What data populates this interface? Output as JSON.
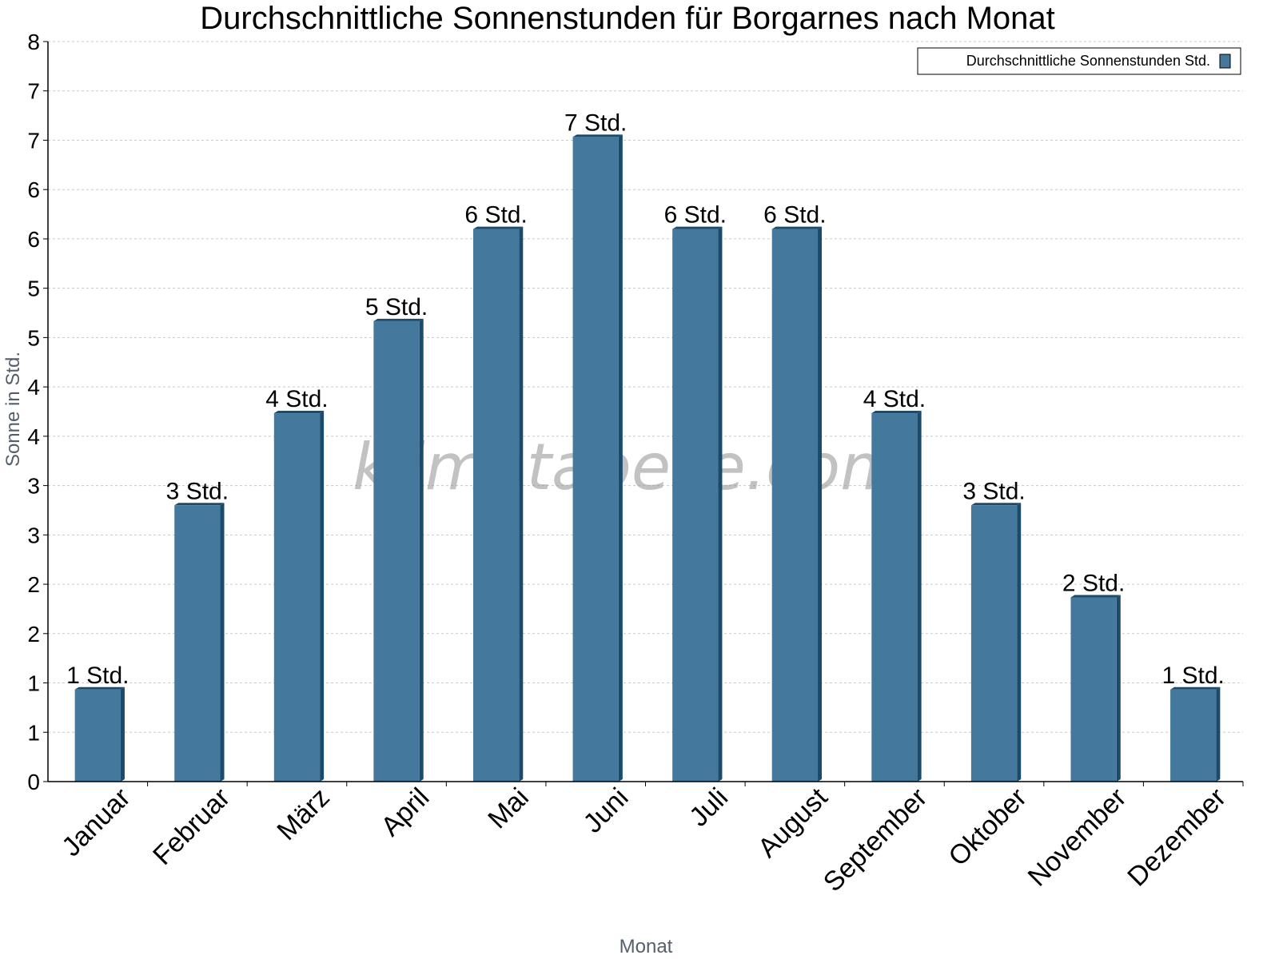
{
  "colors": {
    "bar_front": "#44799d",
    "bar_side": "#1b4a6b",
    "bar_top": "#1b4a6b",
    "grid": "#c8c8c8",
    "axis": "#000000"
  },
  "watermark": "klimatabelle.com",
  "chart_data": {
    "type": "bar",
    "title": "Durchschnittliche Sonnenstunden für Borgarnes nach Monat",
    "xlabel": "Monat",
    "ylabel": "Sonne in Std.",
    "ylim": [
      0,
      7.5
    ],
    "y_tick_labels": [
      "0",
      "1",
      "1",
      "2",
      "2",
      "3",
      "3",
      "4",
      "4",
      "5",
      "5",
      "6",
      "6",
      "7",
      "7",
      "8"
    ],
    "grid": true,
    "legend_position": "top-right",
    "categories": [
      "Januar",
      "Februar",
      "März",
      "April",
      "Mai",
      "Juni",
      "Juli",
      "August",
      "September",
      "Oktober",
      "November",
      "Dezember"
    ],
    "series": [
      {
        "name": "Durchschnittliche Sonnenstunden Std.",
        "values": [
          1,
          3,
          4,
          5,
          6,
          7,
          6,
          6,
          4,
          3,
          2,
          1
        ],
        "data_labels": [
          "1 Std.",
          "3 Std.",
          "4 Std.",
          "5 Std.",
          "6 Std.",
          "7 Std.",
          "6 Std.",
          "6 Std.",
          "4 Std.",
          "3 Std.",
          "2 Std.",
          "1 Std."
        ]
      }
    ]
  }
}
